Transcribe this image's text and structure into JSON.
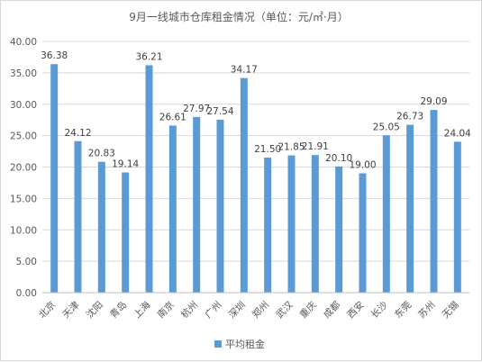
{
  "chart_data": {
    "type": "bar",
    "title": "9月一线城市仓库租金情况（单位：元/㎡·月）",
    "xlabel": "",
    "ylabel": "",
    "ylim": [
      0,
      40
    ],
    "yticks": [
      "0.00",
      "5.00",
      "10.00",
      "15.00",
      "20.00",
      "25.00",
      "30.00",
      "35.00",
      "40.00"
    ],
    "grid": true,
    "legend_position": "bottom",
    "bar_color": "#5B9BD5",
    "categories": [
      "北京",
      "天津",
      "沈阳",
      "青岛",
      "上海",
      "南京",
      "杭州",
      "广州",
      "深圳",
      "郑州",
      "武汉",
      "重庆",
      "成都",
      "西安",
      "长沙",
      "东莞",
      "苏州",
      "无锡"
    ],
    "series": [
      {
        "name": "平均租金",
        "values": [
          36.38,
          24.12,
          20.83,
          19.14,
          36.21,
          26.61,
          27.97,
          27.54,
          34.17,
          21.5,
          21.85,
          21.91,
          20.1,
          19.0,
          25.05,
          26.73,
          29.09,
          24.04
        ],
        "labels": [
          "36.38",
          "24.12",
          "20.83",
          "19.14",
          "36.21",
          "26.61",
          "27.97",
          "27.54",
          "34.17",
          "21.50",
          "21.85",
          "21.91",
          "20.10",
          "19.00",
          "25.05",
          "26.73",
          "29.09",
          "24.04"
        ]
      }
    ]
  }
}
